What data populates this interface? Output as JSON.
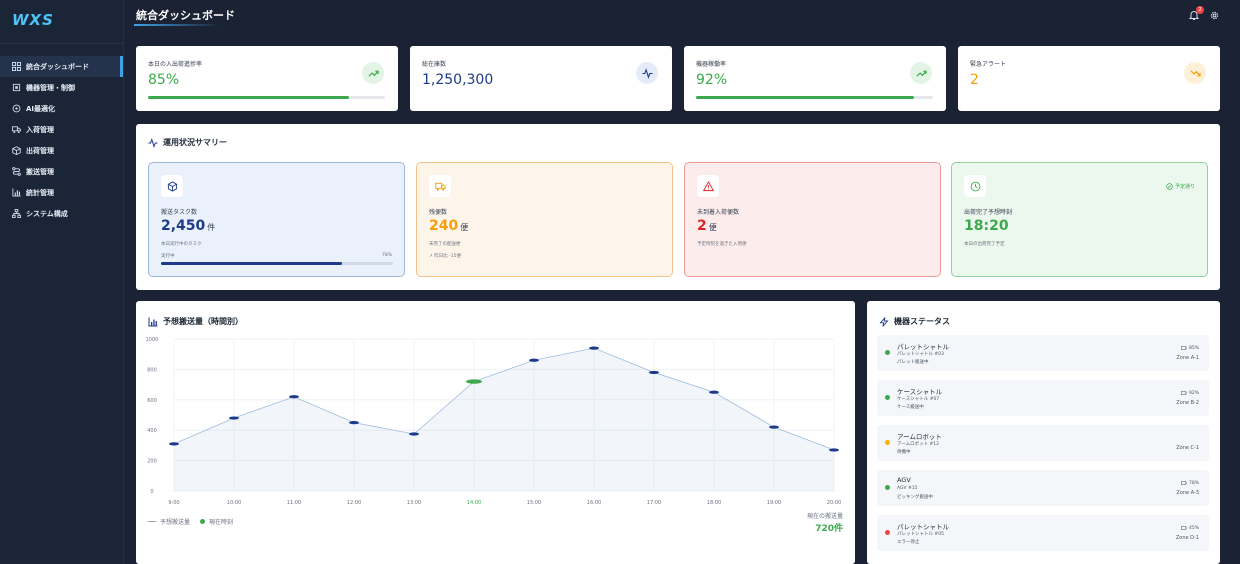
{
  "app": {
    "logo": "WXS"
  },
  "sidebar": {
    "items": [
      {
        "label": "統合ダッシュボード",
        "icon": "dashboard-icon",
        "active": true
      },
      {
        "label": "機器管理・制御",
        "icon": "cpu-icon"
      },
      {
        "label": "AI最適化",
        "icon": "ai-icon"
      },
      {
        "label": "入荷管理",
        "icon": "truck-icon"
      },
      {
        "label": "出荷管理",
        "icon": "package-icon"
      },
      {
        "label": "搬送管理",
        "icon": "route-icon"
      },
      {
        "label": "統計管理",
        "icon": "bar-chart-icon"
      },
      {
        "label": "システム構成",
        "icon": "network-icon"
      }
    ]
  },
  "header": {
    "title": "統合ダッシュボード",
    "notification_count": "2"
  },
  "kpis": [
    {
      "label": "本日の入出荷進捗率",
      "value": "85%",
      "progress": 0.85,
      "color": "#3caa4c",
      "icon": "trend-up-icon"
    },
    {
      "label": "総在庫数",
      "value": "1,250,300",
      "color": "#1e3a8a",
      "icon": "activity-icon"
    },
    {
      "label": "機器稼働率",
      "value": "92%",
      "progress": 0.92,
      "color": "#3caa4c",
      "icon": "trend-up-icon"
    },
    {
      "label": "緊急アラート",
      "value": "2",
      "color": "#f59e0b",
      "icon": "trend-down-icon"
    }
  ],
  "summary": {
    "title": "運用状況サマリー",
    "cards": [
      {
        "label": "搬送タスク数",
        "value": "2,450",
        "unit": "件",
        "sub": "本日実行中のタスク",
        "bar_label": "実行中",
        "bar_pct": "78%",
        "progress": 0.78,
        "icon": "box-icon"
      },
      {
        "label": "残便数",
        "value": "240",
        "unit": "便",
        "sub": "未完了の配送便",
        "sub2": "↗ 昨日比 -15便",
        "icon": "truck-icon"
      },
      {
        "label": "未到着入荷便数",
        "value": "2",
        "unit": "便",
        "sub": "予定時刻を過ぎた入荷便",
        "icon": "warning-icon"
      },
      {
        "label": "出荷完了予想時刻",
        "value": "18:20",
        "sub": "本日の出荷完了予定",
        "chip": "予定通り",
        "icon": "clock-icon"
      }
    ]
  },
  "chart_panel": {
    "title": "予想搬送量（時間別）",
    "legend_series": "予想搬送量",
    "legend_current": "現在時刻",
    "current_label": "現在の搬送量",
    "current_value": "720件"
  },
  "chart_data": {
    "type": "line",
    "x": [
      "9:00",
      "10:00",
      "11:00",
      "12:00",
      "13:00",
      "14:00",
      "15:00",
      "16:00",
      "17:00",
      "18:00",
      "19:00",
      "20:00"
    ],
    "series": [
      {
        "values": [
          310,
          480,
          620,
          450,
          375,
          720,
          860,
          940,
          780,
          650,
          420,
          270
        ]
      }
    ],
    "current_index": 5,
    "yticks": [
      "0",
      "200",
      "400",
      "600",
      "800",
      "1000"
    ],
    "ylim": [
      0,
      1000
    ],
    "grid": true
  },
  "equipment": {
    "title": "機器ステータス",
    "items": [
      {
        "name": "パレットシャトル",
        "id": "パレットシャトル #03",
        "status": "パレット搬送中",
        "battery": "85%",
        "zone": "Zone A-1",
        "color": "#3caa4c"
      },
      {
        "name": "ケースシャトル",
        "id": "ケースシャトル #07",
        "status": "ケース搬送中",
        "battery": "92%",
        "zone": "Zone B-2",
        "color": "#3caa4c"
      },
      {
        "name": "アームロボット",
        "id": "アームロボット #12",
        "status": "待機中",
        "battery": "",
        "zone": "Zone C-1",
        "color": "#f5b400"
      },
      {
        "name": "AGV",
        "id": "AGV #15",
        "status": "ピッキング搬送中",
        "battery": "78%",
        "zone": "Zone A-3",
        "color": "#3caa4c"
      },
      {
        "name": "パレットシャトル",
        "id": "パレットシャトル #05",
        "status": "エラー停止",
        "battery": "45%",
        "zone": "Zone D-1",
        "color": "#ef4444"
      }
    ]
  }
}
